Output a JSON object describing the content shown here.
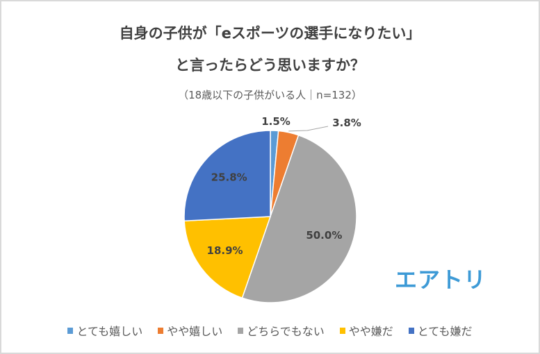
{
  "chart_data": {
    "type": "pie",
    "title_line1": "自身の子供が「eスポーツの選手になりたい」",
    "title_line2": "と言ったらどう思いますか？",
    "subtitle": "（18歳以下の子供がいる人｜n=132）",
    "categories": [
      "とても嬉しい",
      "やや嬉しい",
      "どちらでもない",
      "やや嫌だ",
      "とても嫌だ"
    ],
    "values": [
      1.5,
      3.8,
      50.0,
      18.9,
      25.8
    ],
    "data_labels": [
      "1.5%",
      "3.8%",
      "50.0%",
      "18.9%",
      "25.8%"
    ],
    "colors": [
      "#5B9BD5",
      "#ED7D31",
      "#A5A5A5",
      "#FFC000",
      "#4472C4"
    ],
    "start_angle": "12 o'clock",
    "direction": "clockwise",
    "legend_position": "bottom"
  },
  "logo": "エアトリ"
}
